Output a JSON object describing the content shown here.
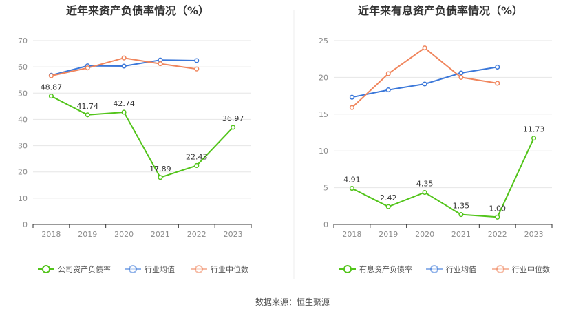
{
  "chart_data": [
    {
      "type": "line",
      "title": "近年来资产负债率情况（%）",
      "categories": [
        "2018",
        "2019",
        "2020",
        "2021",
        "2022",
        "2023"
      ],
      "ylim": [
        0,
        70
      ],
      "yticks": [
        0,
        10,
        20,
        30,
        40,
        50,
        60,
        70
      ],
      "series": [
        {
          "name": "公司资产负债率",
          "color": "#52c41a",
          "values": [
            48.87,
            41.74,
            42.74,
            17.89,
            22.43,
            36.97
          ],
          "labels": [
            "48.87",
            "41.74",
            "42.74",
            "17.89",
            "22.43",
            "36.97"
          ]
        },
        {
          "name": "行业均值",
          "color": "#3a77d9",
          "values": [
            56.8,
            60.4,
            60.3,
            62.6,
            62.4,
            null
          ]
        },
        {
          "name": "行业中位数",
          "color": "#f0855c",
          "values": [
            56.6,
            59.6,
            63.4,
            61.2,
            59.2,
            null
          ]
        }
      ]
    },
    {
      "type": "line",
      "title": "近年来有息资产负债率情况（%）",
      "categories": [
        "2018",
        "2019",
        "2020",
        "2021",
        "2022",
        "2023"
      ],
      "ylim": [
        0,
        25
      ],
      "yticks": [
        0,
        5,
        10,
        15,
        20,
        25
      ],
      "series": [
        {
          "name": "有息资产负债率",
          "color": "#52c41a",
          "values": [
            4.91,
            2.42,
            4.35,
            1.35,
            1.0,
            11.73
          ],
          "labels": [
            "4.91",
            "2.42",
            "4.35",
            "1.35",
            "1.00",
            "11.73"
          ]
        },
        {
          "name": "行业均值",
          "color": "#3a77d9",
          "values": [
            17.3,
            18.3,
            19.1,
            20.6,
            21.4,
            null
          ]
        },
        {
          "name": "行业中位数",
          "color": "#f0855c",
          "values": [
            15.9,
            20.5,
            24.0,
            20.0,
            19.2,
            null
          ]
        }
      ]
    }
  ],
  "footer": {
    "source": "数据来源：恒生聚源"
  }
}
